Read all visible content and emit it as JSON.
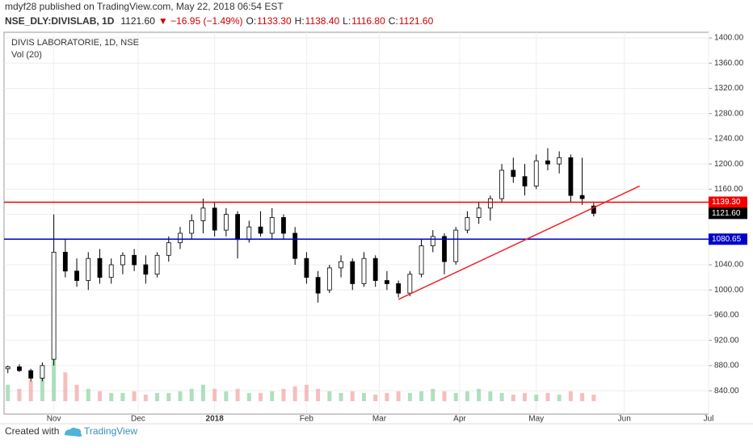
{
  "header": {
    "publish": "mdyf28 published on TradingView.com, May 22, 2018 06:54 EST",
    "symbol": "NSE_DLY:DIVISLAB, 1D",
    "last": "1121.60",
    "change": "▼ −16.95 (−1.49%)",
    "ohlc": [
      {
        "label": "O:",
        "value": "1133.30"
      },
      {
        "label": "H:",
        "value": "1138.40"
      },
      {
        "label": "L:",
        "value": "1116.80"
      },
      {
        "label": "C:",
        "value": "1121.60"
      }
    ]
  },
  "chart_data": {
    "type": "candlestick",
    "title": "DIVIS LABORATORIE, 1D, NSE",
    "subtitle": "Vol (20)",
    "xlim": [
      0,
      184
    ],
    "ylim": [
      803,
      1409
    ],
    "xticks": [
      {
        "value": 13,
        "label": "Nov"
      },
      {
        "value": 35,
        "label": "Dec"
      },
      {
        "value": 55,
        "label": "2018"
      },
      {
        "value": 79,
        "label": "Feb"
      },
      {
        "value": 98,
        "label": "Mar"
      },
      {
        "value": 119,
        "label": "Apr"
      },
      {
        "value": 139,
        "label": "May"
      },
      {
        "value": 162,
        "label": "Jun"
      },
      {
        "value": 184,
        "label": "Jul"
      }
    ],
    "yticks": [
      {
        "value": 840,
        "label": "840.00"
      },
      {
        "value": 880,
        "label": "880.00"
      },
      {
        "value": 920,
        "label": "920.00"
      },
      {
        "value": 960,
        "label": "960.00"
      },
      {
        "value": 1000,
        "label": "1000.00"
      },
      {
        "value": 1040,
        "label": "1040.00"
      },
      {
        "value": 1080,
        "label": "1080.00"
      },
      {
        "value": 1120,
        "label": "1120.00"
      },
      {
        "value": 1160,
        "label": "1160.00"
      },
      {
        "value": 1200,
        "label": "1200.00"
      },
      {
        "value": 1240,
        "label": "1240.00"
      },
      {
        "value": 1280,
        "label": "1280.00"
      },
      {
        "value": 1320,
        "label": "1320.00"
      },
      {
        "value": 1360,
        "label": "1360.00"
      },
      {
        "value": 1400,
        "label": "1400.00"
      }
    ],
    "grid": true,
    "x": [
      1,
      4,
      7,
      10,
      13,
      16,
      19,
      22,
      25,
      28,
      31,
      34,
      37,
      40,
      43,
      46,
      49,
      52,
      55,
      58,
      61,
      64,
      67,
      70,
      73,
      76,
      79,
      82,
      85,
      88,
      91,
      94,
      97,
      100,
      103,
      106,
      109,
      112,
      115,
      118,
      121,
      124,
      127,
      130,
      133,
      136,
      139,
      142,
      145,
      148,
      151,
      154
    ],
    "open": [
      875,
      878,
      872,
      860,
      890,
      1060,
      1030,
      1015,
      1050,
      1020,
      1040,
      1055,
      1040,
      1025,
      1055,
      1075,
      1090,
      1110,
      1130,
      1095,
      1120,
      1080,
      1100,
      1090,
      1115,
      1090,
      1050,
      1020,
      1000,
      1035,
      1045,
      1010,
      1050,
      1015,
      1010,
      995,
      1025,
      1070,
      1085,
      1045,
      1095,
      1115,
      1130,
      1145,
      1190,
      1180,
      1165,
      1205,
      1200,
      1210,
      1150,
      1133.3
    ],
    "high": [
      880,
      882,
      875,
      885,
      1120,
      1080,
      1050,
      1060,
      1065,
      1050,
      1060,
      1065,
      1055,
      1060,
      1085,
      1100,
      1120,
      1145,
      1140,
      1130,
      1125,
      1110,
      1125,
      1130,
      1120,
      1100,
      1060,
      1030,
      1040,
      1055,
      1050,
      1060,
      1055,
      1030,
      1015,
      1030,
      1080,
      1095,
      1090,
      1100,
      1125,
      1140,
      1150,
      1200,
      1210,
      1200,
      1215,
      1225,
      1220,
      1215,
      1210,
      1138.4
    ],
    "low": [
      868,
      870,
      855,
      855,
      880,
      1020,
      1005,
      1000,
      1010,
      1010,
      1025,
      1030,
      1010,
      1020,
      1045,
      1065,
      1080,
      1090,
      1085,
      1085,
      1050,
      1075,
      1085,
      1080,
      1080,
      1040,
      1010,
      980,
      995,
      1020,
      1000,
      1005,
      1005,
      1000,
      988,
      990,
      1020,
      1060,
      1025,
      1040,
      1090,
      1105,
      1110,
      1140,
      1170,
      1150,
      1160,
      1190,
      1185,
      1140,
      1135,
      1116.8
    ],
    "close": [
      878,
      872,
      860,
      880,
      1060,
      1030,
      1015,
      1050,
      1020,
      1040,
      1055,
      1040,
      1025,
      1055,
      1075,
      1090,
      1110,
      1130,
      1095,
      1120,
      1080,
      1100,
      1090,
      1115,
      1090,
      1050,
      1020,
      995,
      1035,
      1045,
      1010,
      1050,
      1015,
      1010,
      995,
      1025,
      1070,
      1085,
      1045,
      1095,
      1115,
      1130,
      1145,
      1190,
      1180,
      1165,
      1205,
      1200,
      1210,
      1150,
      1145,
      1121.6
    ],
    "volume": [
      20,
      15,
      25,
      30,
      108,
      35,
      20,
      15,
      12,
      10,
      10,
      12,
      8,
      10,
      10,
      12,
      15,
      20,
      15,
      12,
      15,
      10,
      10,
      12,
      15,
      18,
      20,
      15,
      12,
      10,
      12,
      10,
      8,
      10,
      12,
      10,
      12,
      15,
      12,
      10,
      12,
      15,
      12,
      10,
      8,
      10,
      8,
      10,
      8,
      12,
      10,
      8
    ],
    "hlines": [
      {
        "value": 1139.3,
        "label": "1139.30",
        "color": "#f00000"
      },
      {
        "value": 1080.65,
        "label": "1080.65",
        "color": "#0000c8"
      }
    ],
    "trendline": {
      "x": [
        103,
        166
      ],
      "y": [
        985,
        1165
      ],
      "color": "#f02020"
    }
  },
  "footer": {
    "created": "Created with",
    "brand": "TradingView"
  }
}
